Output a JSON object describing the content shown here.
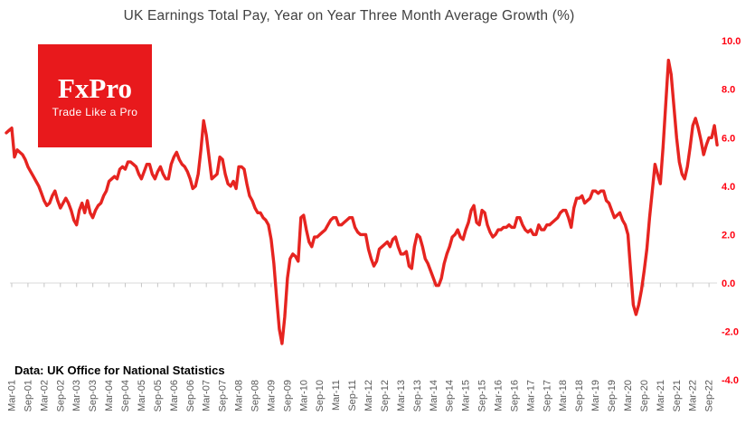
{
  "chart_data": {
    "type": "line",
    "title": "UK Earnings Total Pay, Year on Year Three Month Average Growth (%)",
    "xlabel": "",
    "ylabel": "",
    "ylim": [
      -4.0,
      10.0
    ],
    "grid": false,
    "legend": "none",
    "y_axis_side": "right",
    "line_color": "#e62420",
    "axis_color": "#d9d9d9",
    "tick_color": "#c6c6c6",
    "x_tick_label_color": "#595959",
    "y_tick_label_color": "#ff0010",
    "y_tick_labels": [
      "10.0",
      "8.0",
      "6.0",
      "4.0",
      "2.0",
      "0.0",
      "-2.0",
      "-4.0"
    ],
    "x_tick_labels": [
      "Mar-01",
      "Sep-01",
      "Mar-02",
      "Sep-02",
      "Mar-03",
      "Sep-03",
      "Mar-04",
      "Sep-04",
      "Mar-05",
      "Sep-05",
      "Mar-06",
      "Sep-06",
      "Mar-07",
      "Sep-07",
      "Mar-08",
      "Sep-08",
      "Mar-09",
      "Sep-09",
      "Mar-10",
      "Sep-10",
      "Mar-11",
      "Sep-11",
      "Mar-12",
      "Sep-12",
      "Mar-13",
      "Sep-13",
      "Mar-14",
      "Sep-14",
      "Mar-15",
      "Sep-15",
      "Mar-16",
      "Sep-16",
      "Mar-17",
      "Sep-17",
      "Mar-18",
      "Sep-18",
      "Mar-19",
      "Sep-19",
      "Mar-20",
      "Sep-20",
      "Mar-21",
      "Sep-21",
      "Mar-22",
      "Sep-22"
    ],
    "series": [
      {
        "name": "UK earnings total pay, YoY three month average growth (%)",
        "x_start": "Jan-01",
        "x_interval_months": 1,
        "values": [
          6.2,
          6.3,
          6.4,
          5.2,
          5.5,
          5.4,
          5.3,
          5.1,
          4.8,
          4.6,
          4.4,
          4.2,
          4.0,
          3.7,
          3.4,
          3.2,
          3.3,
          3.6,
          3.8,
          3.4,
          3.1,
          3.3,
          3.5,
          3.3,
          3.0,
          2.6,
          2.4,
          3.0,
          3.3,
          2.9,
          3.4,
          2.9,
          2.7,
          3.0,
          3.2,
          3.3,
          3.6,
          3.8,
          4.2,
          4.3,
          4.4,
          4.3,
          4.7,
          4.8,
          4.7,
          5.0,
          5.0,
          4.9,
          4.8,
          4.5,
          4.3,
          4.6,
          4.9,
          4.9,
          4.5,
          4.3,
          4.6,
          4.8,
          4.5,
          4.3,
          4.3,
          4.9,
          5.2,
          5.4,
          5.1,
          4.9,
          4.8,
          4.6,
          4.3,
          3.9,
          4.0,
          4.5,
          5.5,
          6.7,
          6.1,
          5.2,
          4.3,
          4.4,
          4.5,
          5.2,
          5.1,
          4.5,
          4.1,
          4.0,
          4.2,
          3.9,
          4.8,
          4.8,
          4.7,
          4.1,
          3.6,
          3.4,
          3.1,
          2.9,
          2.9,
          2.7,
          2.6,
          2.4,
          1.8,
          0.8,
          -0.6,
          -1.9,
          -2.5,
          -1.4,
          0.2,
          1.0,
          1.2,
          1.1,
          0.9,
          2.7,
          2.8,
          2.2,
          1.7,
          1.5,
          1.9,
          1.9,
          2.0,
          2.1,
          2.2,
          2.4,
          2.6,
          2.7,
          2.7,
          2.4,
          2.4,
          2.5,
          2.6,
          2.7,
          2.7,
          2.3,
          2.1,
          2.0,
          2.0,
          2.0,
          1.4,
          1.0,
          0.7,
          0.9,
          1.4,
          1.5,
          1.6,
          1.7,
          1.5,
          1.8,
          1.9,
          1.5,
          1.2,
          1.2,
          1.3,
          0.7,
          0.6,
          1.5,
          2.0,
          1.9,
          1.5,
          1.0,
          0.8,
          0.5,
          0.2,
          -0.1,
          -0.1,
          0.2,
          0.8,
          1.2,
          1.5,
          1.9,
          2.0,
          2.2,
          1.9,
          1.8,
          2.2,
          2.5,
          3.0,
          3.2,
          2.5,
          2.4,
          3.0,
          2.9,
          2.4,
          2.1,
          1.9,
          2.0,
          2.2,
          2.2,
          2.3,
          2.3,
          2.4,
          2.3,
          2.3,
          2.7,
          2.7,
          2.4,
          2.2,
          2.1,
          2.2,
          2.0,
          2.0,
          2.4,
          2.2,
          2.2,
          2.4,
          2.4,
          2.5,
          2.6,
          2.7,
          2.9,
          3.0,
          3.0,
          2.7,
          2.3,
          3.1,
          3.5,
          3.5,
          3.6,
          3.3,
          3.4,
          3.5,
          3.8,
          3.8,
          3.7,
          3.8,
          3.8,
          3.4,
          3.3,
          3.0,
          2.7,
          2.8,
          2.9,
          2.6,
          2.4,
          2.0,
          0.5,
          -0.9,
          -1.3,
          -0.9,
          -0.3,
          0.5,
          1.4,
          2.7,
          3.8,
          4.9,
          4.5,
          4.1,
          5.6,
          7.4,
          9.2,
          8.6,
          7.3,
          6.0,
          5.0,
          4.5,
          4.3,
          4.8,
          5.6,
          6.5,
          6.8,
          6.4,
          5.9,
          5.3,
          5.7,
          6.0,
          6.0,
          6.5,
          5.7
        ]
      }
    ]
  },
  "logo": {
    "brand": "FxPro",
    "tagline": "Trade Like a Pro",
    "bg_color": "#e8191c"
  },
  "source": {
    "text": "Data: UK Office for National Statistics"
  }
}
